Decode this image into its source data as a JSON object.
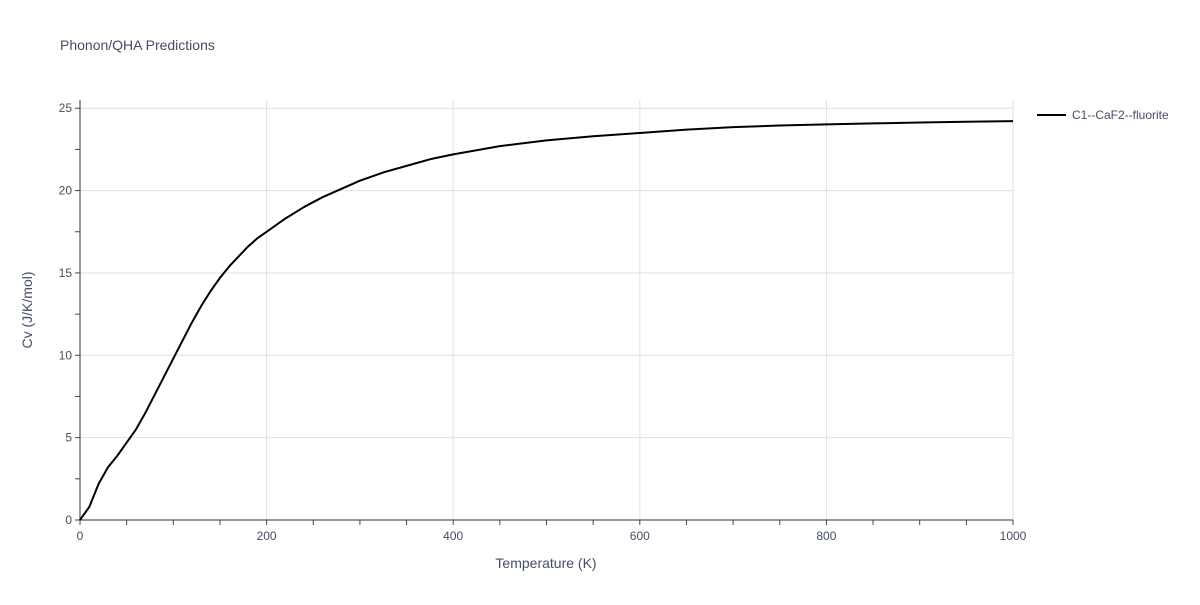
{
  "chart_data": {
    "type": "line",
    "title": "Phonon/QHA Predictions",
    "xlabel": "Temperature (K)",
    "ylabel": "Cv (J/K/mol)",
    "xlim": [
      0,
      1000
    ],
    "ylim": [
      0,
      25.5
    ],
    "x_ticks": [
      0,
      200,
      400,
      600,
      800,
      1000
    ],
    "y_ticks": [
      0,
      5,
      10,
      15,
      20,
      25
    ],
    "grid": true,
    "legend_position": "top-right",
    "series": [
      {
        "name": "C1--CaF2--fluorite",
        "color": "#000000",
        "x": [
          0,
          10,
          20,
          30,
          40,
          50,
          60,
          70,
          80,
          90,
          100,
          110,
          120,
          130,
          140,
          150,
          160,
          170,
          180,
          190,
          200,
          220,
          240,
          260,
          280,
          300,
          325,
          350,
          375,
          400,
          450,
          500,
          550,
          600,
          650,
          700,
          750,
          800,
          850,
          900,
          950,
          1000
        ],
        "y": [
          0,
          0.8,
          2.2,
          3.2,
          3.9,
          4.7,
          5.5,
          6.5,
          7.6,
          8.7,
          9.8,
          10.9,
          12.0,
          13.0,
          13.9,
          14.7,
          15.4,
          16.0,
          16.6,
          17.1,
          17.5,
          18.3,
          19.0,
          19.6,
          20.1,
          20.6,
          21.1,
          21.5,
          21.9,
          22.2,
          22.7,
          23.05,
          23.3,
          23.5,
          23.7,
          23.85,
          23.95,
          24.02,
          24.08,
          24.13,
          24.18,
          24.22
        ]
      }
    ]
  }
}
